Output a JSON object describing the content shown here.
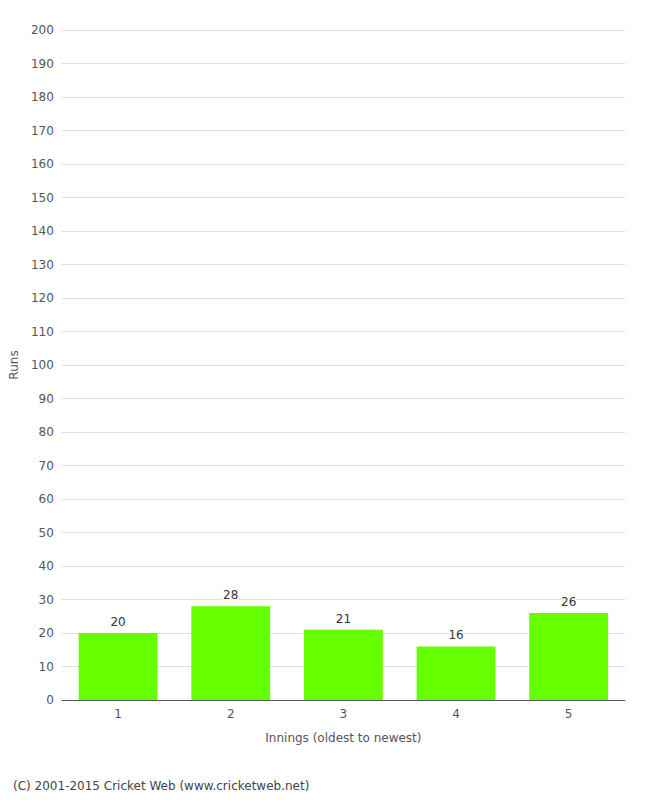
{
  "chart_data": {
    "type": "bar",
    "categories": [
      "1",
      "2",
      "3",
      "4",
      "5"
    ],
    "values": [
      20,
      28,
      21,
      16,
      26
    ],
    "color": "#66ff00",
    "xlabel": "Innings (oldest to newest)",
    "ylabel": "Runs",
    "ylim": [
      0,
      200
    ],
    "yticks": [
      0,
      10,
      20,
      30,
      40,
      50,
      60,
      70,
      80,
      90,
      100,
      110,
      120,
      130,
      140,
      150,
      160,
      170,
      180,
      190,
      200
    ],
    "grid": true,
    "data_labels": true,
    "annotations": [
      "(C) 2001-2015 Cricket Web (www.cricketweb.net)"
    ]
  }
}
